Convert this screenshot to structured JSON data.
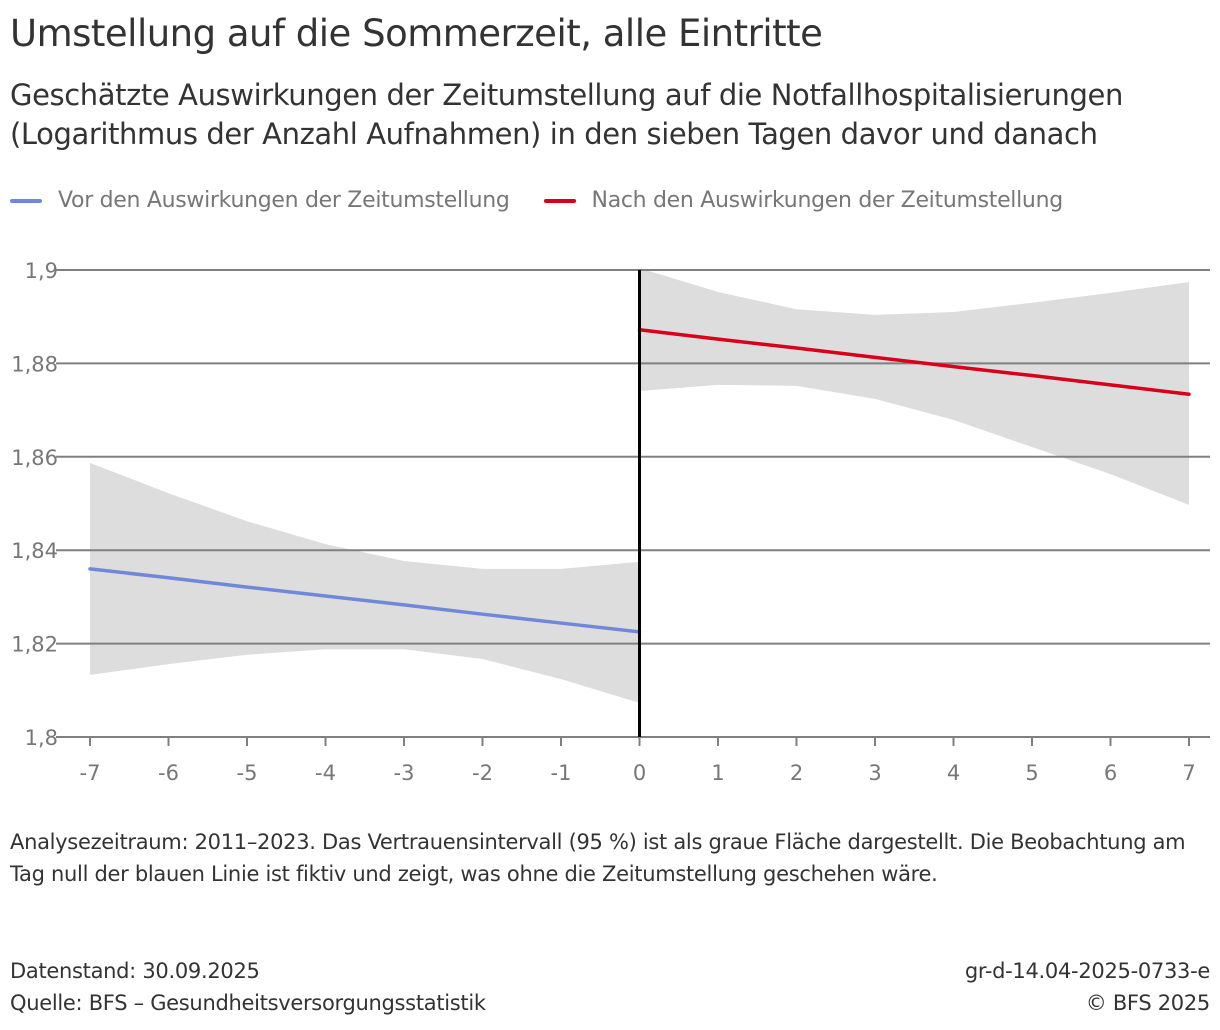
{
  "title": "Umstellung auf die Sommerzeit, alle Eintritte",
  "subtitle_line1": "Geschätzte Auswirkungen der Zeitumstellung auf die Notfallhospitalisierungen",
  "subtitle_line2": "(Logarithmus der Anzahl Aufnahmen) in den sieben Tagen davor und danach",
  "legend": [
    {
      "label": "Vor den Auswirkungen der Zeitumstellung",
      "color": "#7088d8"
    },
    {
      "label": "Nach den Auswirkungen der Zeitumstellung",
      "color": "#d8001a"
    }
  ],
  "note": "Analysezeitraum: 2011–2023. Das Vertrauensintervall (95 %) ist als graue Fläche dargestellt. Die Beobachtung am Tag null der blauen Linie ist fiktiv und zeigt, was ohne die Zeitumstellung geschehen wäre.",
  "footer": {
    "data_status": "Datenstand: 30.09.2025",
    "source": "Quelle: BFS – Gesundheitsversorgungsstatistik",
    "code": "gr-d-14.04-2025-0733-e",
    "copyright": "© BFS 2025"
  },
  "chart_data": {
    "type": "line",
    "title": "Umstellung auf die Sommerzeit, alle Eintritte",
    "xlabel": "",
    "ylabel": "",
    "xlim": [
      -7,
      7
    ],
    "ylim": [
      1.8,
      1.9
    ],
    "x_ticks": [
      -7,
      -6,
      -5,
      -4,
      -3,
      -2,
      -1,
      0,
      1,
      2,
      3,
      4,
      5,
      6,
      7
    ],
    "x_tick_labels": [
      "-7",
      "-6",
      "-5",
      "-4",
      "-3",
      "-2",
      "-1",
      "0",
      "1",
      "2",
      "3",
      "4",
      "5",
      "6",
      "7"
    ],
    "y_ticks": [
      1.8,
      1.82,
      1.84,
      1.86,
      1.88,
      1.9
    ],
    "y_tick_labels": [
      "1,8",
      "1,82",
      "1,84",
      "1,86",
      "1,88",
      "1,9"
    ],
    "grid": true,
    "legend_position": "top-left",
    "vertical_marker_x": 0,
    "colors": {
      "ci_band": "#dddddd",
      "grid": "#808080",
      "marker": "#000000"
    },
    "series": [
      {
        "name": "Vor den Auswirkungen der Zeitumstellung",
        "color": "#7088d8",
        "x": [
          -7,
          -6,
          -5,
          -4,
          -3,
          -2,
          -1,
          0
        ],
        "values": [
          1.836,
          1.8341,
          1.8321,
          1.8302,
          1.8283,
          1.8263,
          1.8244,
          1.8225
        ],
        "ci_upper": [
          1.8587,
          1.8522,
          1.8462,
          1.8413,
          1.8377,
          1.836,
          1.836,
          1.8375
        ],
        "ci_lower": [
          1.8133,
          1.8156,
          1.8176,
          1.8188,
          1.8188,
          1.8167,
          1.8124,
          1.8073
        ]
      },
      {
        "name": "Nach den Auswirkungen der Zeitumstellung",
        "color": "#d8001a",
        "x": [
          0,
          1,
          2,
          3,
          4,
          5,
          6,
          7
        ],
        "values": [
          1.8872,
          1.8852,
          1.8833,
          1.8813,
          1.8793,
          1.8774,
          1.8754,
          1.8734
        ],
        "ci_upper": [
          1.9004,
          1.8953,
          1.8916,
          1.8904,
          1.891,
          1.893,
          1.8951,
          1.8974
        ],
        "ci_lower": [
          1.8741,
          1.8754,
          1.8752,
          1.8724,
          1.8679,
          1.8621,
          1.8563,
          1.8497
        ]
      }
    ]
  }
}
